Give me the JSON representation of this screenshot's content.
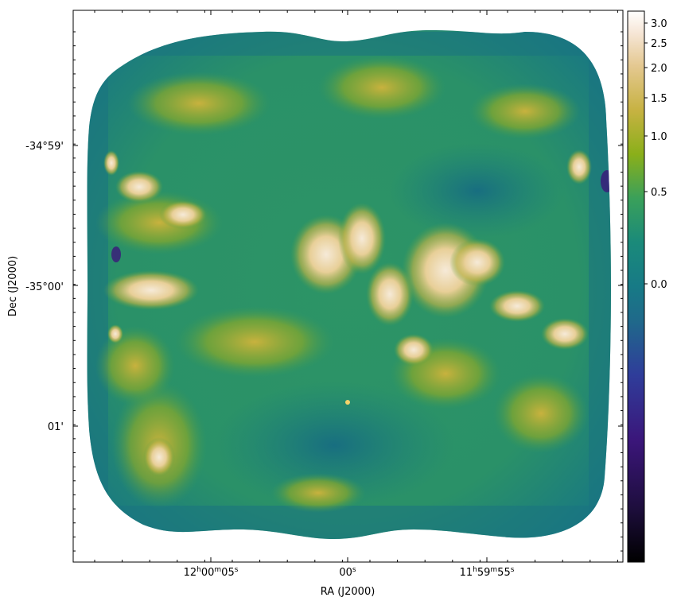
{
  "chart_data": {
    "type": "heatmap",
    "xlabel": "RA (J2000)",
    "ylabel": "Dec (J2000)",
    "x_ticks": [
      {
        "h": "12",
        "m": "00",
        "s": "05"
      },
      {
        "h": "",
        "m": "",
        "s": "00"
      },
      {
        "h": "11",
        "m": "59",
        "s": "55"
      }
    ],
    "y_ticks": [
      "-34°59'",
      "-35°00'",
      "01'"
    ],
    "colorbar": {
      "ticks": [
        "3.0",
        "2.5",
        "2.0",
        "1.5",
        "1.0",
        "0.5",
        "0.0"
      ],
      "colormap": [
        "#000000",
        "#2e1a6e",
        "#2f3d9a",
        "#1f6a8a",
        "#1a8a7a",
        "#3aa05a",
        "#8aaf1a",
        "#d4b84e",
        "#f0d8b8",
        "#ffffff"
      ]
    },
    "background_color": "#ffffff",
    "map_edge_color": "#1a6f82"
  }
}
